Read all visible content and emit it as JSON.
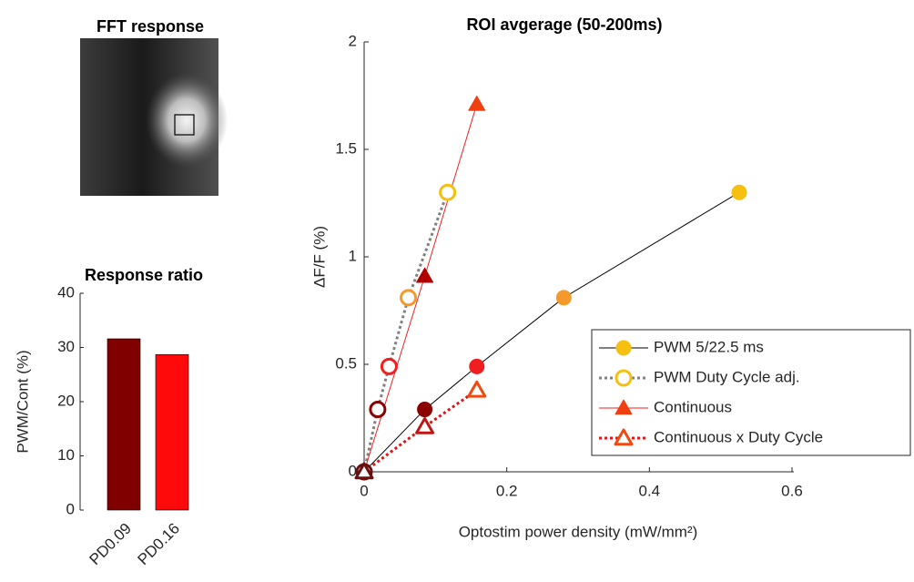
{
  "chart_data": [
    {
      "type": "image",
      "title": "FFT response"
    },
    {
      "type": "bar",
      "title": "Response ratio",
      "ylabel": "PWM/Cont (%)",
      "categories": [
        "PD0.09",
        "PD0.16"
      ],
      "values": [
        31.6,
        28.7
      ],
      "colors": [
        "#800000",
        "#ff0a0a"
      ],
      "ylim": [
        0,
        40
      ],
      "yticks": [
        0,
        10,
        20,
        30,
        40
      ]
    },
    {
      "type": "line",
      "title": "ROI avgerage (50-200ms)",
      "xlabel": "Optostim power density (mW/mm²)",
      "ylabel": "ΔF/F (%)",
      "xlim": [
        0,
        0.6
      ],
      "xticks": [
        0,
        0.2,
        0.4,
        0.6
      ],
      "ylim": [
        0,
        2
      ],
      "yticks": [
        0,
        0.5,
        1,
        1.5,
        2
      ],
      "legend": "lower right",
      "series": [
        {
          "name": "PWM 5/22.5 ms",
          "color": "#000000",
          "line_style": "solid",
          "marker": "circle",
          "filled": true,
          "x": [
            0,
            0.085,
            0.158,
            0.28,
            0.526
          ],
          "values": [
            0,
            0.29,
            0.49,
            0.81,
            1.3
          ],
          "marker_colors": [
            "#6b0f0f",
            "#8b0000",
            "#f01e1e",
            "#f39a2a",
            "#f5c010"
          ]
        },
        {
          "name": "PWM Duty Cycle adj.",
          "color": "#808080",
          "line_style": "dotted",
          "marker": "circle",
          "filled": false,
          "x": [
            0,
            0.019,
            0.035,
            0.062,
            0.117
          ],
          "values": [
            0,
            0.29,
            0.49,
            0.81,
            1.3
          ],
          "marker_colors": [
            "#6b0f0f",
            "#8b0000",
            "#f01e1e",
            "#f39a2a",
            "#f5c010"
          ]
        },
        {
          "name": "Continuous",
          "color": "#f02020",
          "line_style": "solid",
          "marker": "triangle",
          "filled": true,
          "x": [
            0,
            0.085,
            0.158
          ],
          "values": [
            0,
            0.91,
            1.71
          ],
          "marker_colors": [
            "#6b0f0f",
            "#b00000",
            "#f04010"
          ]
        },
        {
          "name": "Continuous x Duty Cycle",
          "color": "#e01515",
          "line_style": "dotted",
          "marker": "triangle",
          "filled": false,
          "x": [
            0,
            0.085,
            0.158
          ],
          "values": [
            0,
            0.21,
            0.38
          ],
          "marker_colors": [
            "#6b0f0f",
            "#c01515",
            "#f04a10"
          ]
        }
      ]
    }
  ]
}
